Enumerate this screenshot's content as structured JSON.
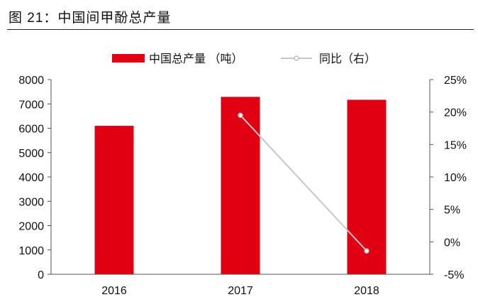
{
  "figure": {
    "title": "图 21：中国间甲酚总产量"
  },
  "chart_data": {
    "type": "bar+line",
    "categories": [
      "2016",
      "2017",
      "2018"
    ],
    "series": [
      {
        "name": "中国总产量 （吨）",
        "type": "bar",
        "axis": "left",
        "color": "#e00012",
        "values": [
          6100,
          7290,
          7170
        ]
      },
      {
        "name": "同比（右）",
        "type": "line",
        "axis": "right",
        "color": "#c8c8c8",
        "values": [
          null,
          19.5,
          -1.4
        ]
      }
    ],
    "y_left": {
      "min": 0,
      "max": 8000,
      "ticks": [
        "0",
        "1000",
        "2000",
        "3000",
        "4000",
        "5000",
        "6000",
        "7000",
        "8000"
      ]
    },
    "y_right": {
      "min": -5,
      "max": 25,
      "ticks": [
        "-5%",
        "0%",
        "5%",
        "10%",
        "15%",
        "20%",
        "25%"
      ]
    },
    "legend_position": "top-center",
    "grid": false
  }
}
